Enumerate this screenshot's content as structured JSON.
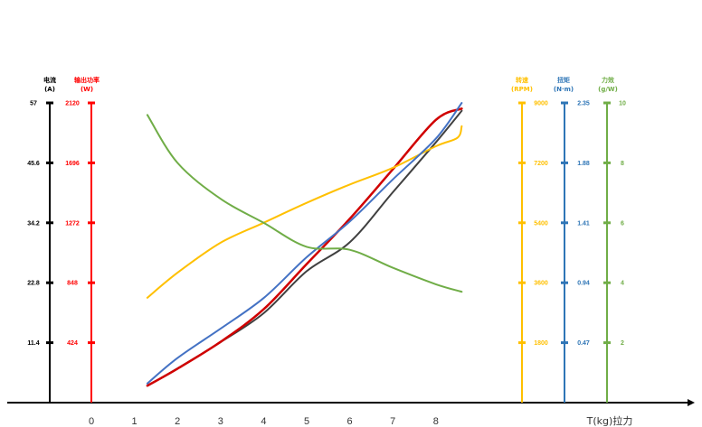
{
  "chart_data": {
    "type": "line",
    "xlabel": "T(kg)拉力",
    "x_ticks": [
      "0",
      "1",
      "2",
      "3",
      "4",
      "5",
      "6",
      "7",
      "8"
    ],
    "xlim": [
      0,
      8.5
    ],
    "axes": [
      {
        "id": "current",
        "title": "电流",
        "unit": "(A)",
        "color": "#000000",
        "side": "left",
        "min": 0,
        "max": 57,
        "ticks": [
          "11.4",
          "22.8",
          "34.2",
          "45.6",
          "57"
        ]
      },
      {
        "id": "power",
        "title": "输出功率",
        "unit": "(W)",
        "color": "#ff0000",
        "side": "left",
        "min": 0,
        "max": 2120,
        "ticks": [
          "424",
          "848",
          "1272",
          "1696",
          "2120"
        ]
      },
      {
        "id": "speed",
        "title": "转速",
        "unit": "(RPM)",
        "color": "#ffc000",
        "side": "right",
        "min": 0,
        "max": 9000,
        "ticks": [
          "1800",
          "3600",
          "5400",
          "7200",
          "9000"
        ]
      },
      {
        "id": "torque",
        "title": "扭矩",
        "unit": "(N·m)",
        "color": "#2e75b6",
        "side": "right",
        "min": 0,
        "max": 2.35,
        "ticks": [
          "0.47",
          "0.94",
          "1.41",
          "1.88",
          "2.35"
        ]
      },
      {
        "id": "efficiency",
        "title": "力效",
        "unit": "(g/W)",
        "color": "#70ad47",
        "side": "right",
        "min": 0,
        "max": 10,
        "ticks": [
          "2",
          "4",
          "6",
          "8",
          "10"
        ]
      }
    ],
    "series": [
      {
        "axis": "current",
        "color": "#404040",
        "x": [
          1.3,
          2,
          3,
          4,
          5,
          6,
          7,
          8,
          8.6
        ],
        "y": [
          3.2,
          6.5,
          11.5,
          17,
          25,
          30.5,
          40,
          49.5,
          55.5
        ]
      },
      {
        "axis": "power",
        "color": "#d00000",
        "x": [
          1.3,
          2,
          3,
          4,
          5,
          6,
          7,
          8,
          8.6
        ],
        "y": [
          120,
          240,
          430,
          660,
          980,
          1300,
          1650,
          2000,
          2080
        ]
      },
      {
        "axis": "speed",
        "color": "#ffc000",
        "x": [
          1.3,
          2,
          3,
          4,
          5,
          6,
          7,
          8,
          8.5,
          8.6
        ],
        "y": [
          3150,
          3900,
          4800,
          5400,
          6000,
          6550,
          7050,
          7700,
          7950,
          8300
        ]
      },
      {
        "axis": "torque",
        "color": "#4472c4",
        "x": [
          1.3,
          2,
          3,
          4,
          5,
          6,
          7,
          8,
          8.6
        ],
        "y": [
          0.15,
          0.35,
          0.58,
          0.82,
          1.14,
          1.42,
          1.75,
          2.07,
          2.35
        ]
      },
      {
        "axis": "efficiency",
        "color": "#70ad47",
        "x": [
          1.3,
          2,
          3,
          4,
          5,
          6,
          7,
          8,
          8.6
        ],
        "y": [
          9.6,
          8.0,
          6.8,
          6.0,
          5.2,
          5.1,
          4.5,
          3.95,
          3.7
        ]
      }
    ]
  }
}
